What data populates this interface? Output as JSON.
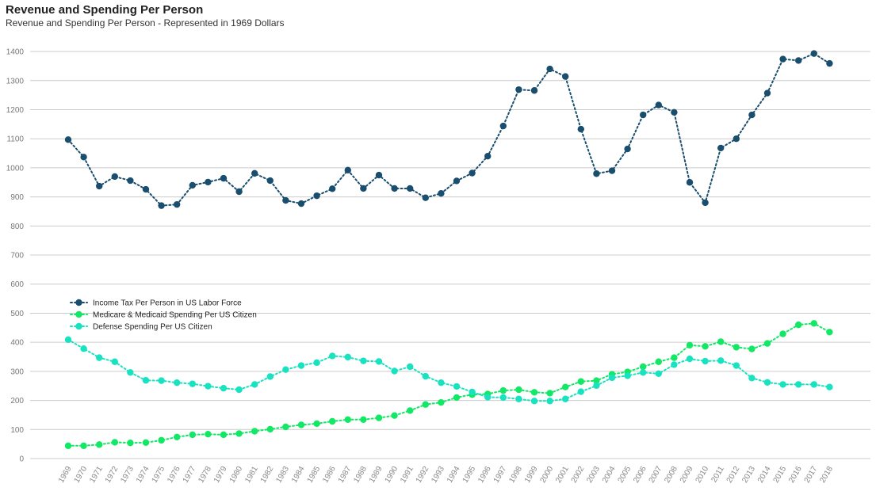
{
  "header": {
    "title": "Revenue and Spending Per Person",
    "subtitle": "Revenue and Spending Per Person - Represented in 1969 Dollars"
  },
  "chart_data": {
    "type": "line",
    "title": "Revenue and Spending Per Person",
    "subtitle": "Revenue and Spending Per Person - Represented in 1969 Dollars",
    "xlabel": "",
    "ylabel": "",
    "ylim": [
      0,
      1400
    ],
    "yticks": [
      0,
      100,
      200,
      300,
      400,
      500,
      600,
      700,
      800,
      900,
      1000,
      1100,
      1200,
      1300,
      1400
    ],
    "grid": true,
    "legend_position": "middle-left",
    "line_style": "dotted with circle markers",
    "x": [
      "1969",
      "1970",
      "1971",
      "1972",
      "1973",
      "1974",
      "1975",
      "1976",
      "1977",
      "1978",
      "1979",
      "1980",
      "1981",
      "1982",
      "1983",
      "1984",
      "1985",
      "1986",
      "1987",
      "1988",
      "1989",
      "1990",
      "1991",
      "1992",
      "1993",
      "1994",
      "1995",
      "1996",
      "1997",
      "1998",
      "1999",
      "2000",
      "2001",
      "2002",
      "2003",
      "2004",
      "2005",
      "2006",
      "2007",
      "2008",
      "2009",
      "2010",
      "2011",
      "2012",
      "2013",
      "2014",
      "2015",
      "2016",
      "2017",
      "2018"
    ],
    "series": [
      {
        "name": "Income Tax Per Person in US Labor Force",
        "color": "#1a4e6e",
        "values": [
          1097,
          1037,
          937,
          970,
          956,
          926,
          870,
          874,
          940,
          951,
          964,
          918,
          981,
          956,
          888,
          877,
          904,
          928,
          992,
          929,
          975,
          929,
          929,
          897,
          912,
          955,
          982,
          1040,
          1144,
          1269,
          1266,
          1340,
          1314,
          1133,
          980,
          990,
          1065,
          1182,
          1216,
          1191,
          950,
          880,
          1068,
          1100,
          1182,
          1257,
          1374,
          1369,
          1393,
          1359
        ]
      },
      {
        "name": "Medicare & Medicaid Spending Per US Citizen",
        "color": "#12e865",
        "values": [
          44,
          44,
          48,
          56,
          54,
          55,
          63,
          74,
          82,
          84,
          82,
          86,
          94,
          101,
          109,
          116,
          120,
          128,
          134,
          134,
          140,
          148,
          165,
          186,
          193,
          210,
          220,
          222,
          234,
          237,
          228,
          225,
          246,
          265,
          268,
          290,
          298,
          316,
          333,
          347,
          390,
          386,
          402,
          383,
          377,
          396,
          429,
          460,
          465,
          435
        ]
      },
      {
        "name": "Defense Spending Per US Citizen",
        "color": "#19e2c0",
        "values": [
          409,
          378,
          347,
          333,
          296,
          269,
          268,
          261,
          257,
          249,
          242,
          237,
          255,
          282,
          306,
          320,
          330,
          353,
          349,
          336,
          334,
          301,
          316,
          283,
          261,
          248,
          229,
          211,
          210,
          205,
          198,
          198,
          205,
          230,
          251,
          278,
          285,
          296,
          292,
          323,
          343,
          335,
          337,
          320,
          277,
          262,
          255,
          255,
          255,
          246
        ]
      }
    ]
  }
}
